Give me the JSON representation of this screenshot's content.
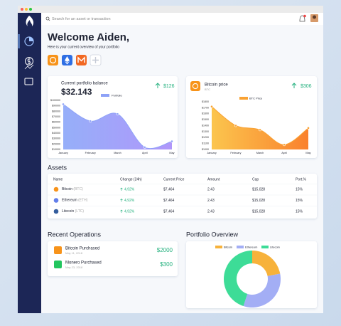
{
  "search": {
    "placeholder": "Search for an asset or transaction"
  },
  "header": {
    "title": "Welcome Aiden,",
    "subtitle": "Here is your current overview of your portfolio"
  },
  "balance_card": {
    "title": "Current portfolio balance",
    "amount": "$32.143",
    "change": "$126",
    "chart": {
      "type": "area",
      "series_name": "Portfolio",
      "color": "#8ea2f7",
      "categories": [
        "January",
        "February",
        "March",
        "April",
        "May"
      ],
      "values": [
        93000,
        62000,
        75000,
        14000,
        25000
      ],
      "ylim": [
        10000,
        100000
      ],
      "yticks": [
        {
          "value": 100000,
          "label": "$100000"
        },
        {
          "value": 90000,
          "label": "$90000"
        },
        {
          "value": 80000,
          "label": "$80000"
        },
        {
          "value": 70000,
          "label": "$70000"
        },
        {
          "value": 60000,
          "label": "$60000"
        },
        {
          "value": 50000,
          "label": "$50000"
        },
        {
          "value": 40000,
          "label": "$40000"
        },
        {
          "value": 30000,
          "label": "$30000"
        },
        {
          "value": 20000,
          "label": "$20000"
        },
        {
          "value": 10000,
          "label": "$10000"
        }
      ]
    }
  },
  "bitcoin_card": {
    "title": "Bitcoin price",
    "ticker": "BTC",
    "change": "$306",
    "chart": {
      "type": "area",
      "series_name": "BTC Price",
      "color": "#f9a233",
      "categories": [
        "January",
        "February",
        "March",
        "April",
        "May"
      ],
      "values": [
        1720,
        1400,
        1330,
        1080,
        1360
      ],
      "ylim": [
        1000,
        1800
      ],
      "yticks": [
        {
          "value": 1800,
          "label": "$1800"
        },
        {
          "value": 1700,
          "label": "$1700"
        },
        {
          "value": 1600,
          "label": "$1600"
        },
        {
          "value": 1500,
          "label": "$1500"
        },
        {
          "value": 1400,
          "label": "$1400"
        },
        {
          "value": 1300,
          "label": "$1300"
        },
        {
          "value": 1200,
          "label": "$1200"
        },
        {
          "value": 1100,
          "label": "$1100"
        },
        {
          "value": 1000,
          "label": "$1000"
        }
      ]
    }
  },
  "assets": {
    "title": "Assets",
    "columns": [
      "Name",
      "Change (24h)",
      "Current Price",
      "Amount",
      "Cap",
      "Port.%"
    ],
    "rows": [
      {
        "name": "Bitcoin",
        "ticker": "(BTC)",
        "change": "4,92%",
        "price": "$7,464",
        "amount": "2.43",
        "cap": "$15,028",
        "port": "15%"
      },
      {
        "name": "Ethereum",
        "ticker": "(ETH)",
        "change": "4,92%",
        "price": "$7,464",
        "amount": "2.43",
        "cap": "$15,028",
        "port": "15%"
      },
      {
        "name": "Litecoin",
        "ticker": "(LTC)",
        "change": "4,92%",
        "price": "$7,464",
        "amount": "2.43",
        "cap": "$15,028",
        "port": "15%"
      }
    ]
  },
  "operations": {
    "title": "Recent Operations",
    "items": [
      {
        "title": "Bitcoin Purchased",
        "date": "May 11, 2018",
        "amount": "$2000"
      },
      {
        "title": "Monero Purchased",
        "date": "May 23, 2018",
        "amount": "$300"
      }
    ]
  },
  "overview": {
    "title": "Portfolio Overview",
    "chart": {
      "type": "pie",
      "categories": [
        "Bitcoin",
        "Ethereum",
        "Litecoin"
      ],
      "values": [
        22,
        33,
        45
      ],
      "colors": [
        "#f7b23b",
        "#a3aef5",
        "#3ddc97"
      ]
    }
  }
}
